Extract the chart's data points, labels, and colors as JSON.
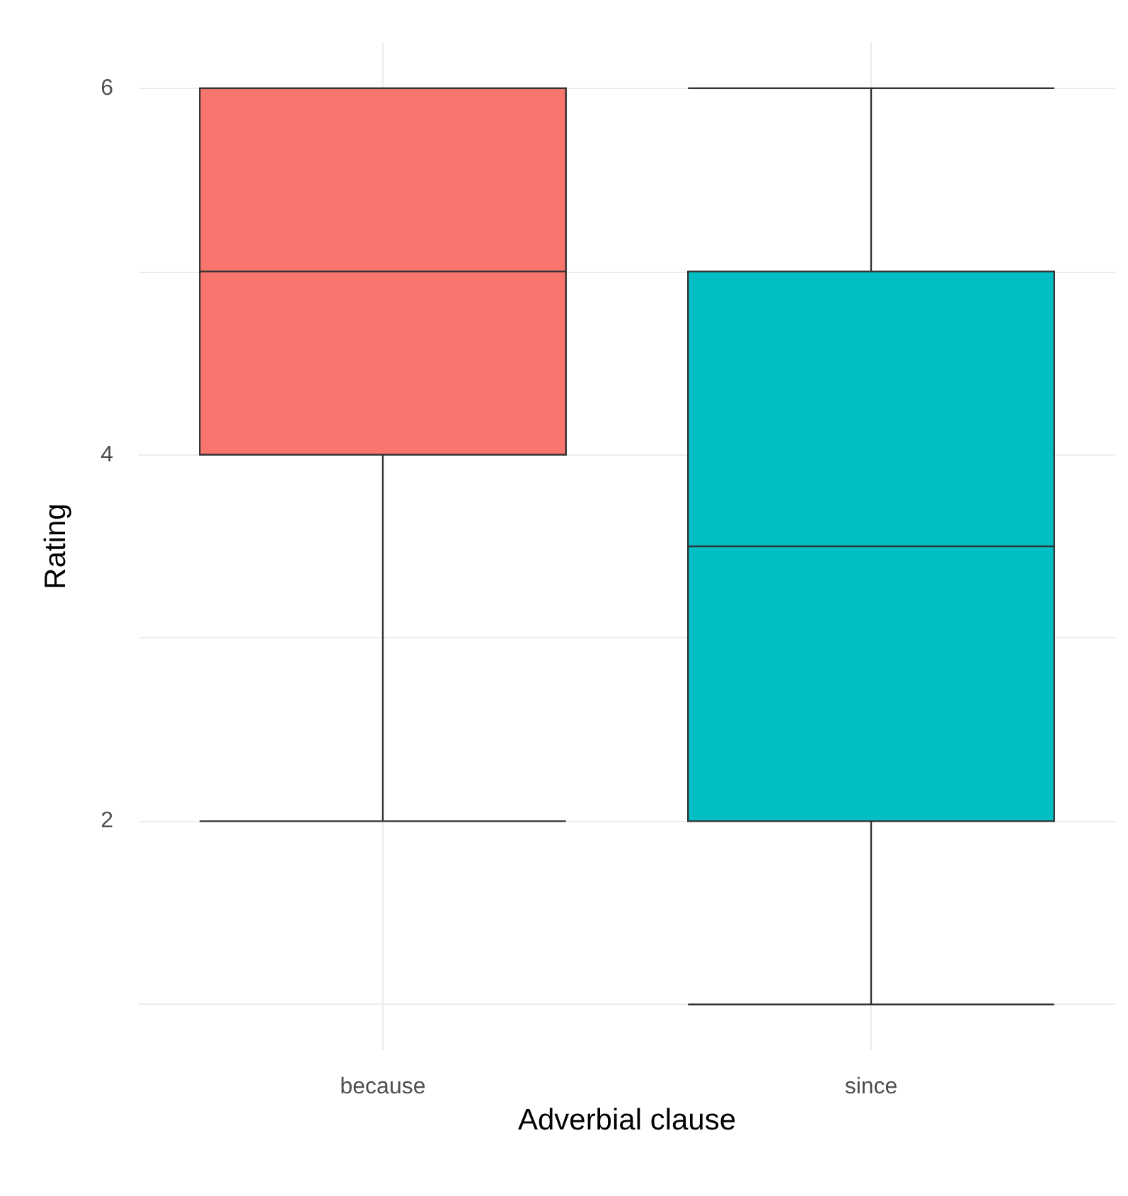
{
  "chart_data": {
    "type": "box",
    "xlabel": "Adverbial clause",
    "ylabel": "Rating",
    "categories": [
      "because",
      "since"
    ],
    "boxes": [
      {
        "low": 2,
        "q1": 4,
        "median": 5,
        "q3": 6,
        "high": 6
      },
      {
        "low": 1,
        "q1": 2,
        "median": 3.5,
        "q3": 5,
        "high": 6
      }
    ],
    "colors": [
      "#f8766d",
      "#00bfc4"
    ],
    "ylim": [
      0.75,
      6.25
    ],
    "yticks": [
      {
        "value": 1,
        "label": null
      },
      2,
      {
        "value": 3,
        "label": null
      },
      4,
      {
        "value": 5,
        "label": null
      },
      6
    ],
    "grid": true
  }
}
